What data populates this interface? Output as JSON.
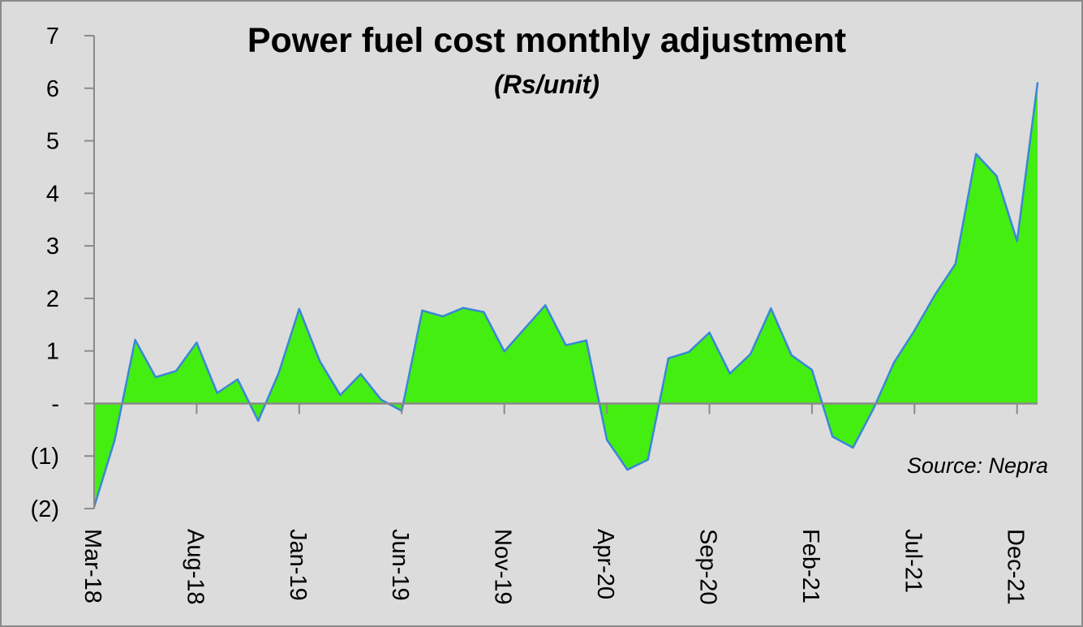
{
  "chart_data": {
    "type": "area",
    "title": "Power fuel cost monthly adjustment",
    "subtitle": "(Rs/unit)",
    "source": "Source: Nepra",
    "ylim": [
      -2,
      7
    ],
    "yticks": [
      {
        "value": 7,
        "label": "7"
      },
      {
        "value": 6,
        "label": "6"
      },
      {
        "value": 5,
        "label": "5"
      },
      {
        "value": 4,
        "label": "4"
      },
      {
        "value": 3,
        "label": "3"
      },
      {
        "value": 2,
        "label": "2"
      },
      {
        "value": 1,
        "label": "1"
      },
      {
        "value": 0,
        "label": "-"
      },
      {
        "value": -1,
        "label": "(1)"
      },
      {
        "value": -2,
        "label": "(2)"
      }
    ],
    "xticks": [
      {
        "index": 0,
        "label": "Mar-18"
      },
      {
        "index": 5,
        "label": "Aug-18"
      },
      {
        "index": 10,
        "label": "Jan-19"
      },
      {
        "index": 15,
        "label": "Jun-19"
      },
      {
        "index": 20,
        "label": "Nov-19"
      },
      {
        "index": 25,
        "label": "Apr-20"
      },
      {
        "index": 30,
        "label": "Sep-20"
      },
      {
        "index": 35,
        "label": "Feb-21"
      },
      {
        "index": 40,
        "label": "Jul-21"
      },
      {
        "index": 45,
        "label": "Dec-21"
      }
    ],
    "x": [
      "Mar-18",
      "Apr-18",
      "May-18",
      "Jun-18",
      "Jul-18",
      "Aug-18",
      "Sep-18",
      "Oct-18",
      "Nov-18",
      "Dec-18",
      "Jan-19",
      "Feb-19",
      "Mar-19",
      "Apr-19",
      "May-19",
      "Jun-19",
      "Jul-19",
      "Aug-19",
      "Sep-19",
      "Oct-19",
      "Nov-19",
      "Dec-19",
      "Jan-20",
      "Feb-20",
      "Mar-20",
      "Apr-20",
      "May-20",
      "Jun-20",
      "Jul-20",
      "Aug-20",
      "Sep-20",
      "Oct-20",
      "Nov-20",
      "Dec-20",
      "Jan-21",
      "Feb-21",
      "Mar-21",
      "Apr-21",
      "May-21",
      "Jun-21",
      "Jul-21",
      "Aug-21",
      "Sep-21",
      "Oct-21",
      "Nov-21",
      "Dec-21",
      "Jan-22"
    ],
    "series": [
      {
        "values": [
          -1.97,
          -0.7,
          1.21,
          0.5,
          0.62,
          1.16,
          0.2,
          0.46,
          -0.33,
          0.58,
          1.8,
          0.81,
          0.16,
          0.56,
          0.07,
          -0.14,
          1.77,
          1.66,
          1.82,
          1.74,
          0.99,
          1.43,
          1.87,
          1.11,
          1.2,
          -0.69,
          -1.26,
          -1.07,
          0.86,
          0.98,
          1.35,
          0.57,
          0.94,
          1.81,
          0.92,
          0.64,
          -0.63,
          -0.84,
          -0.1,
          0.78,
          1.39,
          2.07,
          2.66,
          4.75,
          4.33,
          3.09,
          6.1
        ]
      }
    ],
    "colors": {
      "fill": "#44ee11",
      "line": "#3a86d8",
      "axis": "#8a8a8a",
      "background": "#dcdcdc"
    }
  }
}
